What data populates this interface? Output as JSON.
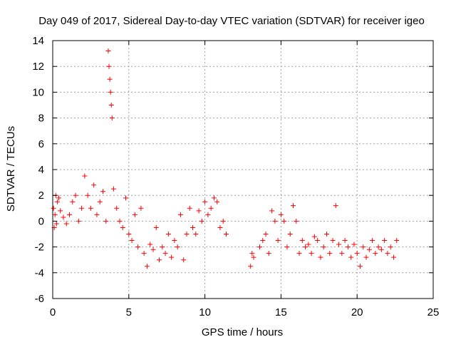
{
  "chart_data": {
    "type": "scatter",
    "title": "Day 049 of 2017, Sidereal Day-to-day VTEC variation (SDTVAR) for receiver igeo",
    "xlabel": "GPS time / hours",
    "ylabel": "SDTVAR / TECUs",
    "xlim": [
      0,
      25
    ],
    "ylim": [
      -6,
      14
    ],
    "xticks": [
      0,
      5,
      10,
      15,
      20,
      25
    ],
    "yticks": [
      -6,
      -4,
      -2,
      0,
      2,
      4,
      6,
      8,
      10,
      12,
      14
    ],
    "grid": true,
    "marker": "+",
    "color": "#ff0000",
    "series": [
      {
        "name": "SDTVAR",
        "x": [
          0.05,
          0.1,
          0.15,
          0.2,
          0.25,
          0.3,
          0.4,
          0.5,
          0.7,
          0.9,
          1.1,
          1.3,
          1.5,
          1.7,
          1.9,
          2.1,
          2.3,
          2.5,
          2.7,
          2.9,
          3.1,
          3.3,
          3.5,
          3.65,
          3.7,
          3.75,
          3.8,
          3.85,
          3.9,
          4.0,
          4.2,
          4.4,
          4.6,
          4.8,
          5.0,
          5.2,
          5.4,
          5.6,
          5.8,
          6.0,
          6.2,
          6.4,
          6.6,
          6.8,
          7.0,
          7.2,
          7.4,
          7.6,
          7.8,
          8.0,
          8.2,
          8.4,
          8.6,
          8.8,
          9.0,
          9.2,
          9.4,
          9.6,
          9.8,
          10.0,
          10.2,
          10.4,
          10.6,
          10.8,
          11.0,
          11.2,
          11.4,
          13.0,
          13.1,
          13.2,
          13.6,
          13.8,
          14.0,
          14.2,
          14.4,
          14.6,
          14.8,
          15.0,
          15.2,
          15.4,
          15.6,
          15.8,
          16.0,
          16.2,
          16.4,
          16.6,
          16.8,
          17.0,
          17.2,
          17.4,
          17.6,
          17.8,
          18.0,
          18.2,
          18.4,
          18.6,
          18.8,
          19.0,
          19.2,
          19.4,
          19.6,
          19.8,
          20.0,
          20.2,
          20.4,
          20.6,
          20.8,
          21.0,
          21.2,
          21.4,
          21.6,
          21.8,
          22.0,
          22.2,
          22.4,
          22.6
        ],
        "y": [
          1.0,
          -0.5,
          0.5,
          2.0,
          -0.2,
          1.5,
          1.8,
          0.8,
          0.3,
          -0.2,
          0.5,
          1.5,
          2.0,
          0.0,
          1.0,
          3.5,
          2.0,
          1.0,
          2.8,
          0.5,
          1.5,
          2.3,
          0.0,
          13.2,
          12.0,
          11.0,
          10.0,
          9.0,
          8.0,
          2.5,
          1.0,
          0.0,
          -0.5,
          1.8,
          -1.0,
          -1.5,
          0.5,
          -2.0,
          1.0,
          -2.5,
          -3.5,
          -1.8,
          -2.2,
          -0.5,
          -3.0,
          -2.0,
          -2.5,
          -1.0,
          -2.8,
          -1.5,
          -2.0,
          0.5,
          -3.0,
          -1.0,
          1.0,
          -0.5,
          -1.0,
          0.8,
          0.0,
          1.5,
          0.5,
          1.0,
          1.8,
          1.5,
          -0.5,
          0.0,
          -1.0,
          -3.5,
          -2.5,
          -2.8,
          -2.0,
          -1.5,
          -1.0,
          -2.5,
          0.8,
          0.0,
          -1.5,
          0.5,
          0.0,
          -2.0,
          -1.0,
          1.2,
          0.0,
          -2.5,
          -1.5,
          -2.0,
          -1.8,
          -2.5,
          -1.2,
          -1.5,
          -2.8,
          -2.0,
          -1.0,
          -2.5,
          -1.5,
          1.2,
          -1.8,
          -2.5,
          -1.5,
          -2.0,
          -2.8,
          -1.8,
          -2.5,
          -3.5,
          -2.0,
          -2.8,
          -2.2,
          -1.5,
          -2.5,
          -2.0,
          -2.2,
          -1.5,
          -2.5,
          -2.0,
          -2.8,
          -1.5
        ]
      }
    ]
  }
}
